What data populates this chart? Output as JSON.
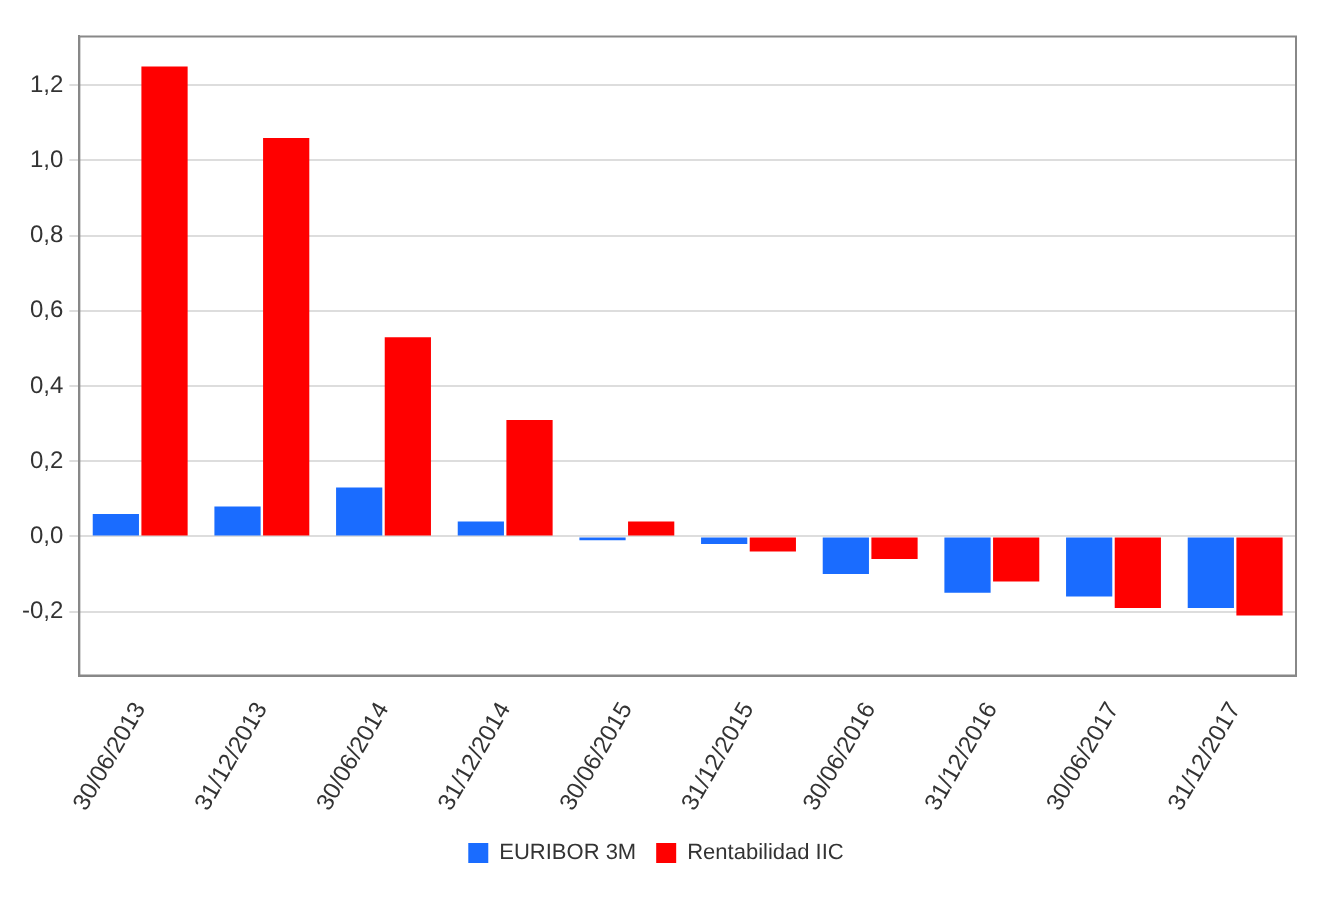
{
  "chart_data": {
    "type": "bar",
    "categories": [
      "30/06/2013",
      "31/12/2013",
      "30/06/2014",
      "31/12/2014",
      "30/06/2015",
      "31/12/2015",
      "30/06/2016",
      "31/12/2016",
      "30/06/2017",
      "31/12/2017"
    ],
    "series": [
      {
        "name": "EURIBOR 3M",
        "color": "#1a6cff",
        "values": [
          0.06,
          0.08,
          0.13,
          0.04,
          -0.01,
          -0.02,
          -0.1,
          -0.15,
          -0.16,
          -0.19
        ]
      },
      {
        "name": "Rentabilidad IIC",
        "color": "#ff0000",
        "values": [
          1.25,
          1.06,
          0.53,
          0.31,
          0.04,
          -0.04,
          -0.06,
          -0.12,
          -0.19,
          -0.21
        ]
      }
    ],
    "ylim": [
      -0.37,
      1.33
    ],
    "yticks": [
      {
        "value": -0.2,
        "label": "-0,2"
      },
      {
        "value": 0,
        "label": "0,0"
      },
      {
        "value": 0.2,
        "label": "0,2"
      },
      {
        "value": 0.4,
        "label": "0,4"
      },
      {
        "value": 0.6,
        "label": "0,6"
      },
      {
        "value": 0.8,
        "label": "0,8"
      },
      {
        "value": 1.0,
        "label": "1,0"
      },
      {
        "value": 1.2,
        "label": "1,2"
      }
    ],
    "grid": "y",
    "legend": "bottom"
  }
}
